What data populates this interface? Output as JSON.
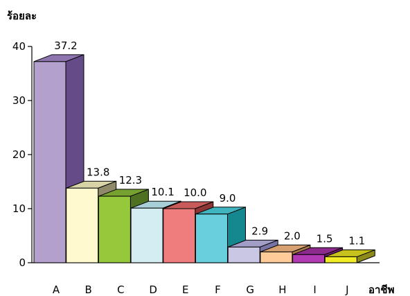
{
  "chart_data": {
    "type": "bar",
    "title": "",
    "ylabel": "ร้อยละ",
    "xlabel": "อาชีพ",
    "categories": [
      "A",
      "B",
      "C",
      "D",
      "E",
      "F",
      "G",
      "H",
      "I",
      "J"
    ],
    "values": [
      37.2,
      13.8,
      12.3,
      10.1,
      10.0,
      9.0,
      2.9,
      2.0,
      1.5,
      1.1
    ],
    "value_labels": [
      "37.2",
      "13.8",
      "12.3",
      "10.1",
      "10.0",
      "9.0",
      "2.9",
      "2.0",
      "1.5",
      "1.1"
    ],
    "ylim": [
      0,
      40
    ],
    "yticks": [
      0,
      10,
      20,
      30,
      40
    ],
    "grid": false,
    "legend": "none",
    "style": "3d-column",
    "bar_colors": [
      {
        "front": "#B4A0CC",
        "side": "#654B88",
        "top": "#8E75AF"
      },
      {
        "front": "#FFFACD",
        "side": "#8F8B6A",
        "top": "#D8D4A8"
      },
      {
        "front": "#96C83C",
        "side": "#4E7122",
        "top": "#76A030"
      },
      {
        "front": "#D3EDF2",
        "side": "#6C9299",
        "top": "#A8CFD7"
      },
      {
        "front": "#F07D7D",
        "side": "#8E3535",
        "top": "#C85A5A"
      },
      {
        "front": "#6ACFDD",
        "side": "#14888E",
        "top": "#3FB4BF"
      },
      {
        "front": "#C9C7E3",
        "side": "#7773A5",
        "top": "#A19DC6"
      },
      {
        "front": "#FFCC99",
        "side": "#A57848",
        "top": "#D6A070"
      },
      {
        "front": "#B23AB2",
        "side": "#6A1C6A",
        "top": "#8D2A8D"
      },
      {
        "front": "#F2EC28",
        "side": "#8C8A1A",
        "top": "#C7C11E"
      }
    ]
  }
}
